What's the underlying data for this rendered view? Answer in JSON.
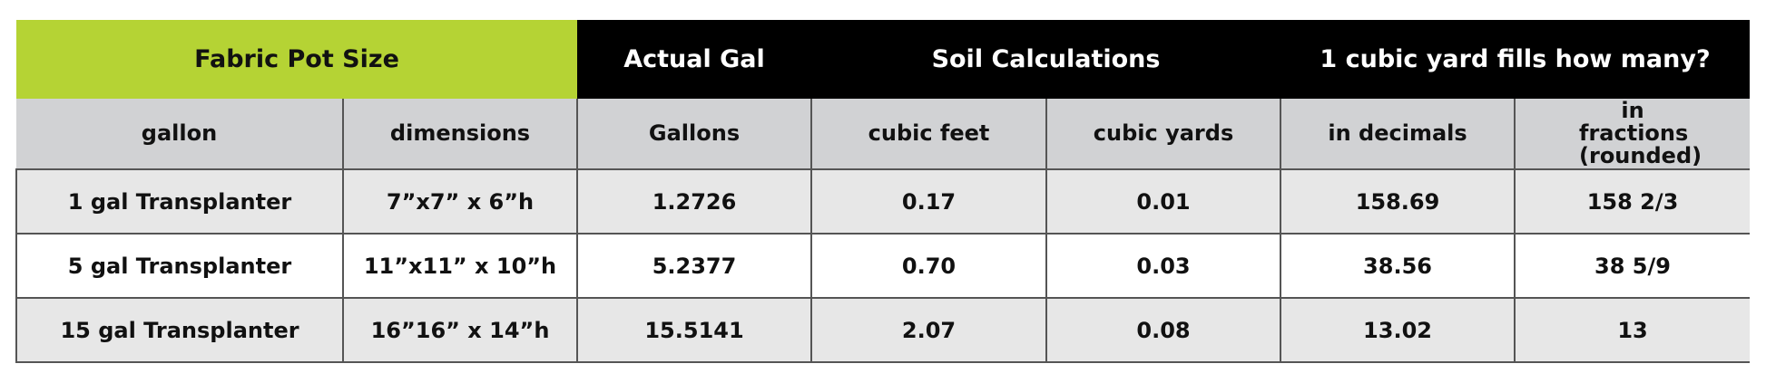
{
  "table": {
    "header": [
      {
        "text": "Fabric Pot Size",
        "span": 2
      },
      {
        "text": "Actual Gal",
        "span": 1
      },
      {
        "text": "Soil Calculations",
        "span": 2
      },
      {
        "text": "1 cubic yard fills how many?",
        "span": 2
      }
    ],
    "columns": [
      "gallon",
      "dimensions",
      "Gallons",
      "cubic feet",
      "cubic yards",
      "in decimals",
      "in fractions (rounded)"
    ],
    "rows": [
      [
        "1 gal Transplanter",
        "7”x7” x 6”h",
        "1.2726",
        "0.17",
        "0.01",
        "158.69",
        "158 2/3"
      ],
      [
        "5 gal Transplanter",
        "11”x11” x 10”h",
        "5.2377",
        "0.70",
        "0.03",
        "38.56",
        "38 5/9"
      ],
      [
        "15 gal Transplanter",
        "16”16” x 14”h",
        "15.5141",
        "2.07",
        "0.08",
        "13.02",
        "13"
      ]
    ]
  }
}
